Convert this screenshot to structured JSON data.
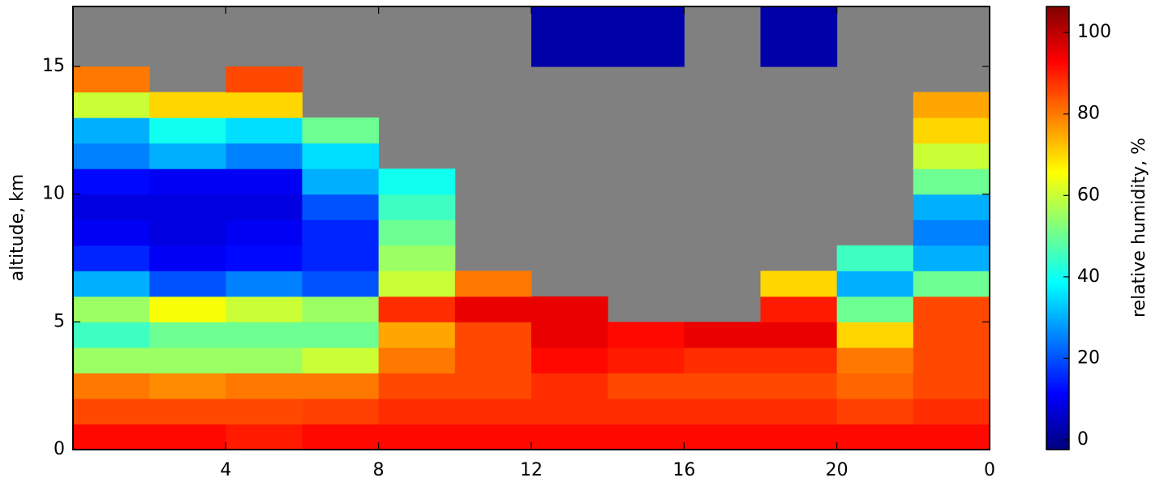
{
  "chart_data": {
    "type": "heatmap",
    "colormap": "jet",
    "missing_color": "#808080",
    "ylabel": "altitude, km",
    "colorbar_label": "relative humidity, %",
    "xlim": [
      0,
      24
    ],
    "xticks": [
      4,
      8,
      12,
      16,
      20,
      {
        "value": 24,
        "label": "0"
      }
    ],
    "ylim": [
      0,
      17.35
    ],
    "yticks": [
      0,
      5,
      10,
      15
    ],
    "clim": [
      -2.4,
      106.4
    ],
    "colorbar_ticks": [
      0,
      20,
      40,
      60,
      80,
      100
    ],
    "x_edges": [
      0,
      2,
      4,
      6,
      8,
      10,
      12,
      14,
      16,
      18,
      20,
      22,
      24
    ],
    "y_edges": [
      0,
      1,
      2,
      3,
      4,
      5,
      6,
      7,
      8,
      9,
      10,
      11,
      12,
      13,
      14,
      15,
      16,
      17,
      18
    ],
    "z": [
      [
        92,
        92,
        90,
        92,
        92,
        92,
        92,
        92,
        92,
        92,
        92,
        92
      ],
      [
        85,
        85,
        85,
        86,
        88,
        88,
        88,
        88,
        88,
        88,
        86,
        88
      ],
      [
        80,
        78,
        80,
        80,
        85,
        85,
        88,
        85,
        85,
        85,
        82,
        85
      ],
      [
        55,
        55,
        55,
        60,
        80,
        85,
        92,
        90,
        88,
        88,
        80,
        85
      ],
      [
        45,
        50,
        50,
        50,
        75,
        85,
        95,
        92,
        95,
        95,
        70,
        85
      ],
      [
        55,
        65,
        60,
        55,
        88,
        95,
        95,
        null,
        null,
        90,
        50,
        85
      ],
      [
        30,
        20,
        25,
        20,
        60,
        80,
        null,
        null,
        null,
        70,
        30,
        50
      ],
      [
        15,
        10,
        12,
        15,
        55,
        null,
        null,
        null,
        null,
        null,
        45,
        30
      ],
      [
        10,
        8,
        10,
        15,
        50,
        null,
        null,
        null,
        null,
        null,
        null,
        25
      ],
      [
        8,
        8,
        8,
        20,
        45,
        null,
        null,
        null,
        null,
        null,
        null,
        30
      ],
      [
        12,
        10,
        10,
        30,
        40,
        null,
        null,
        null,
        null,
        null,
        null,
        50
      ],
      [
        25,
        30,
        25,
        35,
        null,
        null,
        null,
        null,
        null,
        null,
        null,
        60
      ],
      [
        30,
        40,
        35,
        50,
        null,
        null,
        null,
        null,
        null,
        null,
        null,
        70
      ],
      [
        60,
        70,
        70,
        null,
        null,
        null,
        null,
        null,
        null,
        null,
        null,
        75
      ],
      [
        80,
        null,
        85,
        null,
        null,
        null,
        null,
        null,
        null,
        null,
        null,
        null
      ],
      [
        null,
        null,
        null,
        null,
        null,
        null,
        2,
        2,
        null,
        2,
        null,
        null
      ],
      [
        null,
        null,
        null,
        null,
        null,
        null,
        2,
        2,
        null,
        2,
        null,
        null
      ],
      [
        null,
        null,
        null,
        null,
        null,
        null,
        2,
        2,
        null,
        2,
        null,
        null
      ]
    ]
  }
}
